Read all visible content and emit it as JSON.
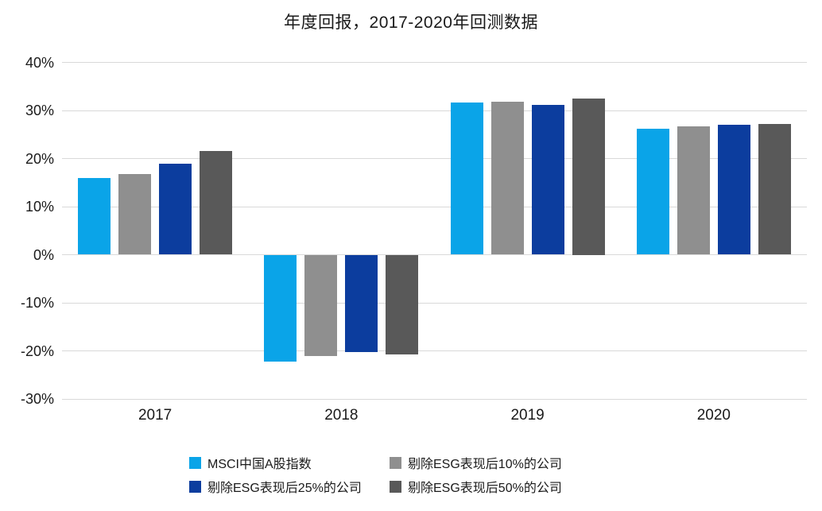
{
  "title": "年度回报，2017-2020年回测数据",
  "chart_data": {
    "type": "bar",
    "title": "年度回报，2017-2020年回测数据",
    "categories": [
      "2017",
      "2018",
      "2019",
      "2020"
    ],
    "series": [
      {
        "name": "MSCI中国A股指数",
        "color": "#0aa4e8",
        "values": [
          16.0,
          -22.3,
          31.6,
          26.2
        ]
      },
      {
        "name": "剔除ESG表现后10%的公司",
        "color": "#8f8f8f",
        "values": [
          16.8,
          -21.0,
          31.9,
          26.7
        ]
      },
      {
        "name": "剔除ESG表现后25%的公司",
        "color": "#0c3d9e",
        "values": [
          19.0,
          -20.3,
          31.1,
          27.0
        ]
      },
      {
        "name": "剔除ESG表现后50%的公司",
        "color": "#595959",
        "values": [
          21.6,
          -20.8,
          32.5,
          27.2
        ]
      }
    ],
    "xlabel": "",
    "ylabel": "",
    "ylim": [
      -30,
      40
    ],
    "ytick_step": 10,
    "yticks": [
      "40%",
      "30%",
      "20%",
      "10%",
      "0%",
      "-10%",
      "-20%",
      "-30%"
    ],
    "grid": true,
    "legend_position": "bottom"
  },
  "colors": {
    "background": "#ffffff",
    "gridline": "#d9d9d9",
    "text": "#1a1a1a"
  }
}
